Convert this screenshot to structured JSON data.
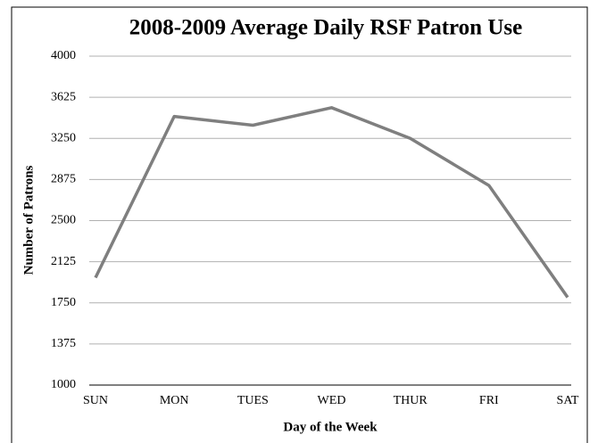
{
  "chart_data": {
    "type": "line",
    "title": "2008-2009 Average Daily RSF Patron Use",
    "x_label": "Day of the Week",
    "y_label": "Number of Patrons",
    "categories": [
      "SUN",
      "MON",
      "TUES",
      "WED",
      "THUR",
      "FRI",
      "SAT"
    ],
    "series": [
      {
        "name": "Patrons",
        "color": "#7f7f7f",
        "values": [
          1980,
          3450,
          3370,
          3530,
          3250,
          2820,
          1800
        ]
      }
    ],
    "ylim": [
      1000,
      4000
    ],
    "yticks": [
      1000,
      1375,
      1750,
      2125,
      2500,
      2875,
      3250,
      3625,
      4000
    ],
    "grid": true
  }
}
